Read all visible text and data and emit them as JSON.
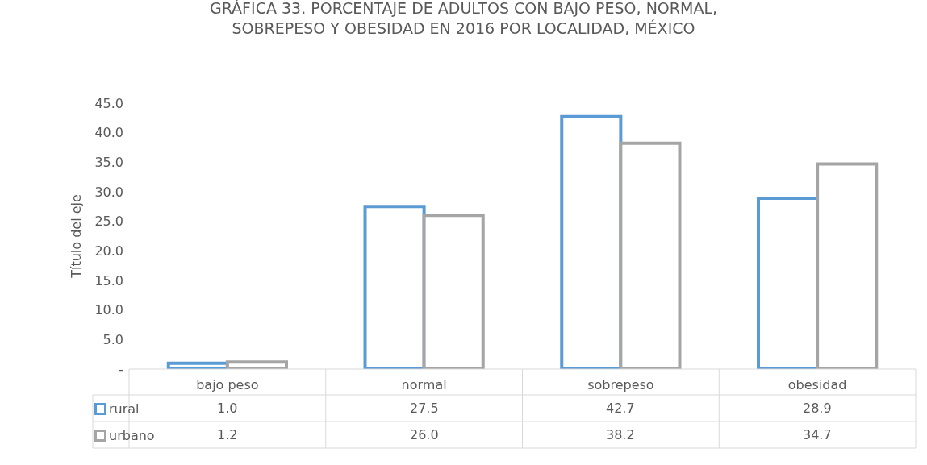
{
  "chart_data": {
    "type": "bar",
    "title": "GRÁFICA 33. PORCENTAJE DE ADULTOS CON BAJO PESO, NORMAL,\nSOBREPESO Y OBESIDAD EN 2016 POR LOCALIDAD, MÉXICO",
    "ylabel": "Título del eje",
    "categories": [
      "bajo peso",
      "normal",
      "sobrepeso",
      "obesidad"
    ],
    "series": [
      {
        "name": "rural",
        "color": "#5b9bd5",
        "values": [
          1.0,
          27.5,
          42.7,
          28.9
        ],
        "value_labels": [
          "1.0",
          "27.5",
          "42.7",
          "28.9"
        ]
      },
      {
        "name": "urbano",
        "color": "#a5a5a5",
        "values": [
          1.2,
          26.0,
          38.2,
          34.7
        ],
        "value_labels": [
          "1.2",
          "26.0",
          "38.2",
          "34.7"
        ]
      }
    ],
    "ylim": [
      0,
      45
    ],
    "yticks": [
      {
        "value": 0,
        "label": "-"
      },
      {
        "value": 5,
        "label": "5.0"
      },
      {
        "value": 10,
        "label": "10.0"
      },
      {
        "value": 15,
        "label": "15.0"
      },
      {
        "value": 20,
        "label": "20.0"
      },
      {
        "value": 25,
        "label": "25.0"
      },
      {
        "value": 30,
        "label": "30.0"
      },
      {
        "value": 35,
        "label": "35.0"
      },
      {
        "value": 40,
        "label": "40.0"
      },
      {
        "value": 45,
        "label": "45.0"
      }
    ],
    "grid": false,
    "legend": "bottom"
  }
}
